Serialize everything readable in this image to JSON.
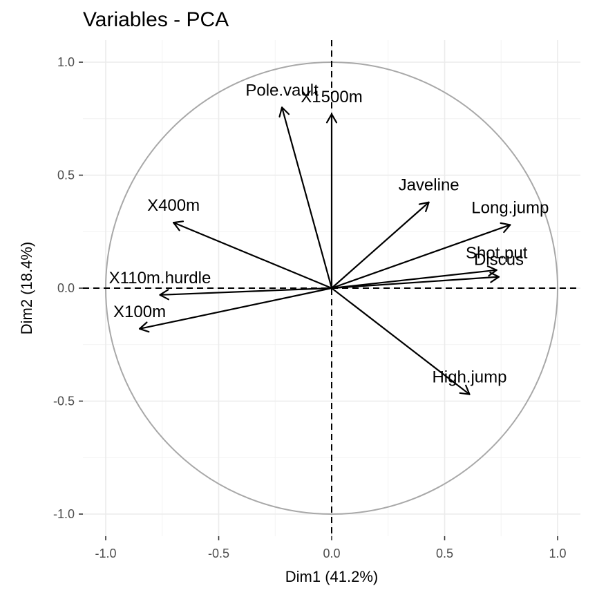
{
  "chart_data": {
    "type": "scatter",
    "subtype": "pca-variable-correlation-circle",
    "title": "Variables - PCA",
    "xlabel": "Dim1 (41.2%)",
    "ylabel": "Dim2 (18.4%)",
    "xlim": [
      -1.0,
      1.0
    ],
    "ylim": [
      -1.0,
      1.0
    ],
    "xticks": [
      -1.0,
      -0.5,
      0.0,
      0.5,
      1.0
    ],
    "xtick_labels": [
      "-1.0",
      "-0.5",
      "0.0",
      "0.5",
      "1.0"
    ],
    "yticks": [
      1.0,
      0.5,
      0.0,
      -0.5,
      -1.0
    ],
    "ytick_labels": [
      "1.0",
      "0.5",
      "0.0",
      "-0.5",
      "-1.0"
    ],
    "grid": true,
    "unit_circle": true,
    "zero_lines": "dashed",
    "variables": [
      {
        "name": "X100m",
        "x": -0.85,
        "y": -0.18
      },
      {
        "name": "Long.jump",
        "x": 0.79,
        "y": 0.28
      },
      {
        "name": "Shot.put",
        "x": 0.73,
        "y": 0.08
      },
      {
        "name": "High.jump",
        "x": 0.61,
        "y": -0.47
      },
      {
        "name": "X400m",
        "x": -0.7,
        "y": 0.29
      },
      {
        "name": "X110m.hurdle",
        "x": -0.76,
        "y": -0.03
      },
      {
        "name": "Discus",
        "x": 0.74,
        "y": 0.05
      },
      {
        "name": "Pole.vault",
        "x": -0.22,
        "y": 0.8
      },
      {
        "name": "Javeline",
        "x": 0.43,
        "y": 0.38
      },
      {
        "name": "X1500m",
        "x": 0.0,
        "y": 0.77
      }
    ],
    "colors": {
      "arrow": "#000000",
      "circle": "#a8a8a8",
      "grid": "#ebebeb",
      "tick_label": "#4d4d4d"
    }
  }
}
